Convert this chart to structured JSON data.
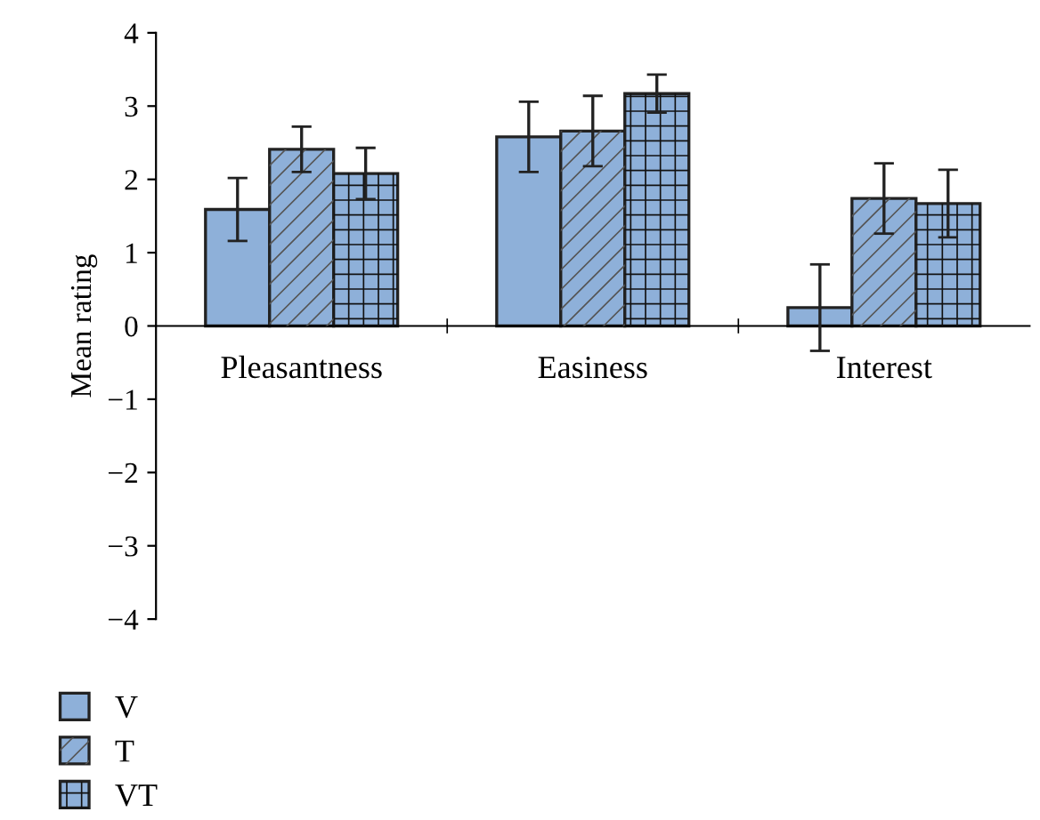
{
  "chart_data": {
    "type": "bar",
    "ylabel": "Mean rating",
    "categories": [
      "Pleasantness",
      "Easiness",
      "Interest"
    ],
    "series": [
      {
        "name": "V",
        "color": "#8eb0d9",
        "values": [
          1.59,
          2.58,
          0.25
        ],
        "errors": [
          0.43,
          0.48,
          0.59
        ]
      },
      {
        "name": "T",
        "color": "#8eb0d9",
        "values": [
          2.41,
          2.66,
          1.74
        ],
        "errors": [
          0.31,
          0.48,
          0.48
        ]
      },
      {
        "name": "VT",
        "color": "#8eb0d9",
        "values": [
          2.08,
          3.17,
          1.67
        ],
        "errors": [
          0.35,
          0.26,
          0.46
        ]
      }
    ],
    "ylim": [
      -4,
      4
    ],
    "yticks": [
      -4,
      -3,
      -2,
      -1,
      0,
      1,
      2,
      3,
      4
    ],
    "legend": "bottom left",
    "grid": false
  }
}
